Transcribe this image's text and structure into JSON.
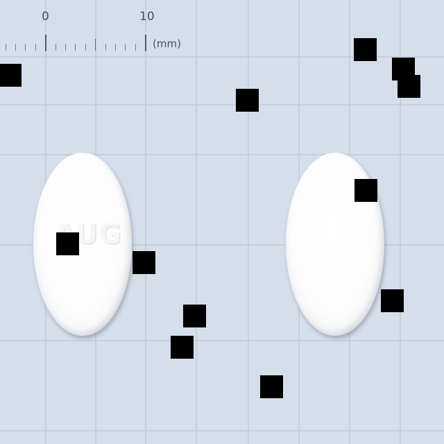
{
  "scale": {
    "zero_label": "0",
    "ten_label": "10",
    "unit_label": "(mm)"
  },
  "tablets": [
    {
      "imprint": "AUG",
      "color": "#ffffff"
    },
    {
      "imprint": "",
      "color": "#ffffff"
    }
  ],
  "colors": {
    "background": "#d6deea",
    "grid": "#c5cfdc",
    "redaction": "#000000"
  }
}
